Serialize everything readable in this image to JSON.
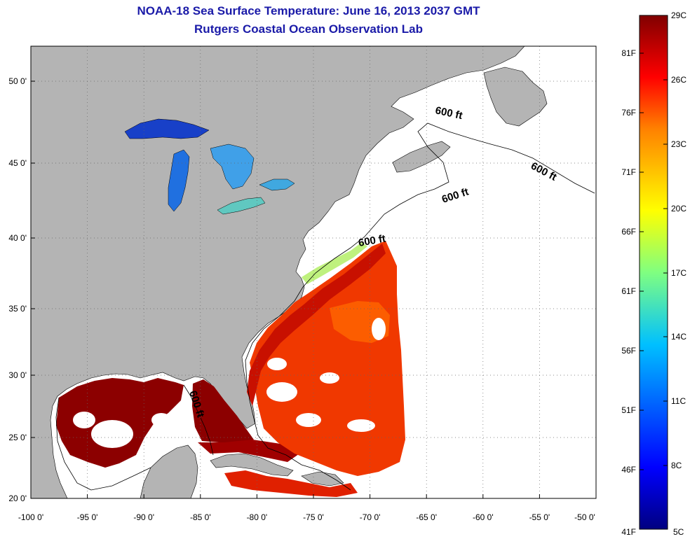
{
  "header": {
    "title": "NOAA-18 Sea Surface Temperature:  June 16, 2013 2037 GMT",
    "subtitle": "Rutgers Coastal Ocean Observation Lab"
  },
  "map": {
    "lon_ticks": [
      "-100 0'",
      "-95 0'",
      "-90 0'",
      "-85 0'",
      "-80 0'",
      "-75 0'",
      "-70 0'",
      "-65 0'",
      "-60 0'",
      "-55 0'",
      "-50 0'"
    ],
    "lat_ticks": [
      "20 0'",
      "25 0'",
      "30 0'",
      "35 0'",
      "40 0'",
      "45 0'",
      "50 0'"
    ],
    "isobath_label": "600 ft",
    "isobath_labels": [
      "600 ft",
      "600 ft",
      "600 ft",
      "600 ft",
      "600 ft"
    ],
    "land_color": "#b4b4b4",
    "ocean_color": "#ffffff",
    "grid": "dotted"
  },
  "colorbar": {
    "celsius_labels": [
      "29C",
      "26C",
      "23C",
      "20C",
      "17C",
      "14C",
      "11C",
      "8C",
      "5C"
    ],
    "fahrenheit_labels": [
      "81F",
      "76F",
      "71F",
      "66F",
      "61F",
      "56F",
      "51F",
      "46F",
      "41F"
    ],
    "colors": [
      "#800000",
      "#ff0000",
      "#ff8000",
      "#ffff00",
      "#80ff80",
      "#00ffff",
      "#0080ff",
      "#0000ff",
      "#000080"
    ]
  }
}
